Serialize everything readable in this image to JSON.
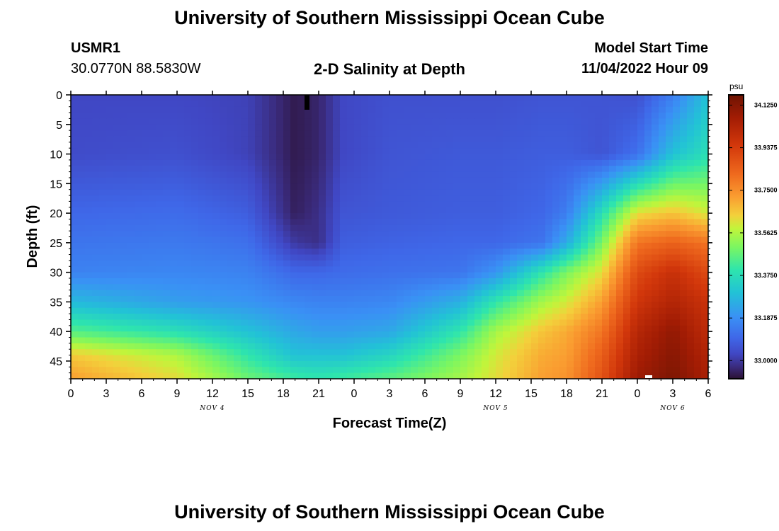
{
  "page": {
    "title": "University of Southern Mississippi Ocean Cube",
    "station": "USMR1",
    "coords": "30.0770N  88.5830W",
    "subtitle": "2-D Salinity at Depth",
    "model_start_label": "Model Start Time",
    "model_start_value": "11/04/2022 Hour 09",
    "footer_title": "University of Southern Mississippi Ocean Cube"
  },
  "chart_data": {
    "type": "heatmap",
    "title": "2-D Salinity at Depth",
    "xlabel": "Forecast Time(Z)",
    "ylabel": "Depth (ft)",
    "x_tick_labels": [
      "0",
      "3",
      "6",
      "9",
      "12",
      "15",
      "18",
      "21",
      "0",
      "3",
      "6",
      "9",
      "12",
      "15",
      "18",
      "21",
      "0",
      "3",
      "6"
    ],
    "x_range_hours": [
      0,
      54
    ],
    "day_labels": [
      {
        "label": "NOV 4",
        "at_hour": 12
      },
      {
        "label": "NOV 5",
        "at_hour": 36
      },
      {
        "label": "NOV 6",
        "at_hour": 51
      }
    ],
    "y_tick_labels": [
      "0",
      "5",
      "10",
      "15",
      "20",
      "25",
      "30",
      "35",
      "40",
      "45"
    ],
    "y_range_ft": [
      0,
      48
    ],
    "y_inverted": true,
    "colorbar": {
      "unit": "psu",
      "range": [
        32.92,
        34.17
      ],
      "tick_labels": [
        "34.1250",
        "33.9375",
        "33.7500",
        "33.5625",
        "33.3750",
        "33.1875",
        "33.0000"
      ],
      "tick_values": [
        34.125,
        33.9375,
        33.75,
        33.5625,
        33.375,
        33.1875,
        33.0
      ]
    },
    "salinity_profile": {
      "depths_ft": [
        0,
        10,
        20,
        25,
        30,
        35,
        40,
        44,
        48
      ],
      "hours": [
        0,
        9,
        15,
        19,
        21,
        23,
        27,
        33,
        36,
        40,
        42,
        45,
        48,
        51,
        54
      ],
      "values_psu": [
        [
          33.03,
          33.03,
          33.02,
          32.94,
          32.96,
          33.03,
          33.05,
          33.05,
          33.05,
          33.06,
          33.06,
          33.06,
          33.05,
          33.15,
          33.3
        ],
        [
          33.04,
          33.05,
          33.02,
          32.94,
          32.96,
          33.03,
          33.06,
          33.07,
          33.07,
          33.08,
          33.08,
          33.06,
          33.12,
          33.3,
          33.38
        ],
        [
          33.1,
          33.11,
          33.08,
          32.95,
          32.98,
          33.06,
          33.07,
          33.08,
          33.08,
          33.1,
          33.15,
          33.38,
          33.62,
          33.66,
          33.6
        ],
        [
          33.13,
          33.14,
          33.12,
          33.0,
          32.98,
          33.08,
          33.09,
          33.1,
          33.1,
          33.13,
          33.25,
          33.5,
          33.8,
          33.84,
          33.8
        ],
        [
          33.16,
          33.17,
          33.16,
          33.1,
          33.1,
          33.11,
          33.12,
          33.13,
          33.2,
          33.4,
          33.5,
          33.62,
          33.9,
          33.98,
          33.9
        ],
        [
          33.28,
          33.22,
          33.2,
          33.17,
          33.16,
          33.16,
          33.17,
          33.26,
          33.4,
          33.55,
          33.6,
          33.72,
          33.96,
          34.03,
          33.97
        ],
        [
          33.45,
          33.38,
          33.3,
          33.24,
          33.22,
          33.22,
          33.24,
          33.4,
          33.55,
          33.66,
          33.7,
          33.8,
          34.02,
          34.1,
          34.0
        ],
        [
          33.65,
          33.56,
          33.4,
          33.3,
          33.3,
          33.3,
          33.35,
          33.5,
          33.6,
          33.7,
          33.72,
          33.85,
          34.05,
          34.12,
          34.03
        ],
        [
          33.72,
          33.62,
          33.48,
          33.42,
          33.4,
          33.42,
          33.46,
          33.55,
          33.62,
          33.72,
          33.74,
          33.88,
          34.08,
          34.14,
          34.05
        ]
      ]
    },
    "colorscale_anchors": [
      {
        "v": 32.92,
        "color": "#2b1133"
      },
      {
        "v": 32.97,
        "color": "#3a2a7a"
      },
      {
        "v": 33.03,
        "color": "#4047c4"
      },
      {
        "v": 33.1,
        "color": "#3f67e8"
      },
      {
        "v": 33.19,
        "color": "#3a90f5"
      },
      {
        "v": 33.3,
        "color": "#22c2d6"
      },
      {
        "v": 33.4,
        "color": "#2ee5ad"
      },
      {
        "v": 33.5,
        "color": "#7bf661"
      },
      {
        "v": 33.58,
        "color": "#c0f53b"
      },
      {
        "v": 33.64,
        "color": "#f3d03b"
      },
      {
        "v": 33.72,
        "color": "#fa9e31"
      },
      {
        "v": 33.82,
        "color": "#ef6a1e"
      },
      {
        "v": 33.95,
        "color": "#d2370b"
      },
      {
        "v": 34.07,
        "color": "#a21c04"
      },
      {
        "v": 34.17,
        "color": "#6e1403"
      }
    ]
  }
}
